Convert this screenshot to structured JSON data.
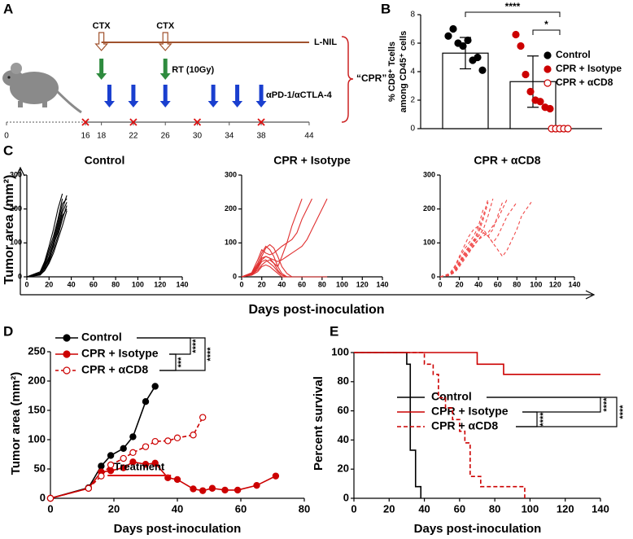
{
  "panel_labels": [
    "A",
    "B",
    "C",
    "D",
    "E"
  ],
  "panel_c": {
    "ylabel": "Tumor area (mm²)",
    "xlabel": "Days post-inoculation"
  },
  "chart_data": [
    {
      "type": "timeline",
      "xticks": [
        0,
        16,
        18,
        22,
        26,
        30,
        34,
        38,
        44
      ],
      "ctx": {
        "label": "CTX",
        "color": "#a0522d",
        "days": [
          18,
          26
        ]
      },
      "lnil": {
        "label": "L-NIL",
        "color": "#a0522d",
        "days": [
          18,
          44
        ]
      },
      "rt": {
        "label": "RT (10Gy)",
        "color": "#2e8b3e",
        "days": [
          18,
          26
        ]
      },
      "checkpoint": {
        "label": "αPD-1/αCTLA-4",
        "color": "#1a3fcf",
        "days": [
          19,
          22,
          26,
          32,
          35,
          38
        ]
      },
      "crosses": {
        "color": "#dd1111",
        "days": [
          16,
          22,
          30,
          38
        ]
      },
      "group_label": "“CPR”",
      "group_color": "#cc2222"
    },
    {
      "type": "bar",
      "categories": [
        "Control",
        "CPR + Isotype",
        "CPR + αCD8"
      ],
      "values": [
        5.3,
        3.3,
        0
      ],
      "errors": [
        1.1,
        1.8,
        0
      ],
      "points": [
        [
          6.5,
          7.0,
          6.0,
          5.8,
          6.2,
          4.8,
          5.0,
          4.1
        ],
        [
          6.6,
          5.8,
          3.8,
          2.6,
          2.0,
          1.9,
          1.5,
          1.4
        ],
        [
          0,
          0,
          0,
          0,
          0
        ]
      ],
      "colors": [
        "#000000",
        "#cc0000",
        "#cc0000"
      ],
      "hollow": [
        false,
        false,
        true
      ],
      "ylabel": [
        "% CD8⁺ Tcells",
        "among CD45⁺ cells"
      ],
      "ylim": [
        0,
        8
      ],
      "yticks": [
        0,
        2,
        4,
        6,
        8
      ],
      "significance": [
        "****",
        "*"
      ]
    },
    {
      "type": "spaghetti",
      "title": "Control",
      "dashed": false,
      "xlim": [
        0,
        140
      ],
      "xticks": [
        0,
        20,
        40,
        60,
        80,
        100,
        120,
        140
      ],
      "ylim": [
        0,
        300
      ],
      "yticks": [
        0,
        100,
        200,
        300
      ],
      "x": [
        0,
        12,
        16,
        20,
        24,
        28,
        32,
        36
      ],
      "series": [
        {
          "color": "#000000",
          "values": [
            0,
            10,
            30,
            60,
            100,
            150,
            200,
            240
          ]
        },
        {
          "color": "#000000",
          "values": [
            0,
            8,
            25,
            55,
            90,
            140,
            190,
            220
          ]
        },
        {
          "color": "#000000",
          "values": [
            0,
            12,
            40,
            80,
            120,
            170,
            230,
            null
          ]
        },
        {
          "color": "#000000",
          "values": [
            0,
            5,
            20,
            45,
            80,
            120,
            170,
            210
          ]
        },
        {
          "color": "#000000",
          "values": [
            0,
            15,
            45,
            90,
            140,
            200,
            245,
            null
          ]
        },
        {
          "color": "#000000",
          "values": [
            0,
            7,
            28,
            50,
            95,
            130,
            180,
            200
          ]
        },
        {
          "color": "#000000",
          "values": [
            0,
            10,
            35,
            70,
            110,
            160,
            215,
            230
          ]
        },
        {
          "color": "#000000",
          "values": [
            0,
            6,
            18,
            40,
            70,
            110,
            150,
            195
          ]
        }
      ]
    },
    {
      "type": "spaghetti",
      "title": "CPR + Isotype",
      "dashed": false,
      "xlim": [
        0,
        140
      ],
      "xticks": [
        0,
        20,
        40,
        60,
        80,
        100,
        120,
        140
      ],
      "ylim": [
        0,
        300
      ],
      "yticks": [
        0,
        100,
        200,
        300
      ],
      "x": [
        0,
        10,
        16,
        20,
        24,
        28,
        32,
        36,
        40,
        45,
        50,
        55,
        60,
        65,
        70,
        75,
        80,
        85
      ],
      "series": [
        {
          "color": "#e03030",
          "values": [
            0,
            10,
            40,
            70,
            90,
            80,
            60,
            30,
            10,
            0,
            0,
            0,
            0,
            0,
            0,
            0,
            0,
            0
          ]
        },
        {
          "color": "#e03030",
          "values": [
            0,
            8,
            30,
            60,
            85,
            95,
            85,
            60,
            30,
            10,
            0,
            0,
            0,
            0,
            0,
            0,
            0,
            0
          ]
        },
        {
          "color": "#e03030",
          "values": [
            0,
            12,
            50,
            80,
            70,
            65,
            70,
            80,
            90,
            100,
            110,
            130,
            170,
            200,
            230,
            null,
            null,
            null
          ]
        },
        {
          "color": "#e03030",
          "values": [
            0,
            6,
            25,
            45,
            50,
            40,
            30,
            15,
            5,
            0,
            0,
            0,
            0,
            0,
            0,
            0,
            0,
            0
          ]
        },
        {
          "color": "#e03030",
          "values": [
            0,
            9,
            35,
            55,
            60,
            55,
            40,
            30,
            60,
            100,
            150,
            190,
            230,
            null,
            null,
            null,
            null,
            null
          ]
        },
        {
          "color": "#e03030",
          "values": [
            0,
            7,
            20,
            35,
            45,
            50,
            40,
            20,
            5,
            0,
            0,
            0,
            0,
            0,
            0,
            0,
            0,
            0
          ]
        },
        {
          "color": "#e03030",
          "values": [
            0,
            8,
            28,
            50,
            60,
            55,
            50,
            45,
            50,
            60,
            70,
            80,
            90,
            110,
            140,
            170,
            200,
            230
          ]
        },
        {
          "color": "#e03030",
          "values": [
            0,
            5,
            15,
            30,
            35,
            30,
            20,
            10,
            0,
            0,
            0,
            0,
            0,
            0,
            0,
            0,
            0,
            0
          ]
        }
      ]
    },
    {
      "type": "spaghetti",
      "title": "CPR + αCD8",
      "dashed": true,
      "xlim": [
        0,
        140
      ],
      "xticks": [
        0,
        20,
        40,
        60,
        80,
        100,
        120,
        140
      ],
      "ylim": [
        0,
        300
      ],
      "yticks": [
        0,
        100,
        200,
        300
      ],
      "x": [
        0,
        10,
        16,
        20,
        25,
        30,
        35,
        40,
        45,
        50,
        55,
        60,
        65,
        70,
        75,
        80,
        85,
        90,
        95
      ],
      "series": [
        {
          "color": "#f04848",
          "values": [
            0,
            5,
            20,
            40,
            60,
            80,
            100,
            130,
            170,
            220,
            null,
            null,
            null,
            null,
            null,
            null,
            null,
            null,
            null
          ]
        },
        {
          "color": "#f04848",
          "values": [
            0,
            8,
            30,
            55,
            80,
            100,
            120,
            150,
            200,
            null,
            null,
            null,
            null,
            null,
            null,
            null,
            null,
            null,
            null
          ]
        },
        {
          "color": "#f04848",
          "values": [
            0,
            6,
            25,
            45,
            70,
            90,
            110,
            120,
            140,
            180,
            230,
            null,
            null,
            null,
            null,
            null,
            null,
            null,
            null
          ]
        },
        {
          "color": "#f04848",
          "values": [
            0,
            10,
            35,
            60,
            90,
            120,
            140,
            150,
            130,
            120,
            140,
            180,
            220,
            null,
            null,
            null,
            null,
            null,
            null
          ]
        },
        {
          "color": "#f04848",
          "values": [
            0,
            4,
            15,
            30,
            50,
            70,
            95,
            110,
            120,
            130,
            150,
            170,
            200,
            230,
            null,
            null,
            null,
            null,
            null
          ]
        },
        {
          "color": "#f04848",
          "values": [
            0,
            7,
            20,
            40,
            60,
            80,
            100,
            120,
            140,
            120,
            100,
            120,
            150,
            180,
            200,
            220,
            null,
            null,
            null
          ]
        },
        {
          "color": "#f04848",
          "values": [
            0,
            5,
            18,
            35,
            55,
            75,
            90,
            110,
            130,
            120,
            100,
            80,
            60,
            80,
            110,
            140,
            180,
            200,
            220
          ]
        },
        {
          "color": "#f04848",
          "values": [
            0,
            6,
            22,
            42,
            65,
            85,
            105,
            140,
            180,
            230,
            null,
            null,
            null,
            null,
            null,
            null,
            null,
            null,
            null
          ]
        }
      ]
    },
    {
      "type": "line",
      "ylabel": "Tumor area (mm²)",
      "xlabel": "Days post-inoculation",
      "xlim": [
        0,
        80
      ],
      "xticks": [
        0,
        20,
        40,
        60,
        80
      ],
      "ylim": [
        0,
        250
      ],
      "yticks": [
        0,
        50,
        100,
        150,
        200,
        250
      ],
      "series": [
        {
          "name": "Control",
          "color": "#000000",
          "hollow": false,
          "dashed": false,
          "x": [
            0,
            12,
            16,
            19,
            23,
            26,
            30,
            33
          ],
          "values": [
            0,
            18,
            55,
            73,
            85,
            105,
            165,
            191
          ]
        },
        {
          "name": "CPR + Isotype",
          "color": "#cc0000",
          "hollow": false,
          "dashed": false,
          "x": [
            0,
            12,
            16,
            19,
            23,
            26,
            30,
            33,
            37,
            40,
            45,
            48,
            51,
            55,
            59,
            65,
            71
          ],
          "values": [
            0,
            17,
            45,
            47,
            52,
            62,
            58,
            60,
            35,
            32,
            16,
            13,
            17,
            14,
            14,
            22,
            38
          ]
        },
        {
          "name": "CPR + αCD8",
          "color": "#cc0000",
          "hollow": true,
          "dashed": true,
          "x": [
            0,
            12,
            16,
            19,
            23,
            26,
            30,
            33,
            37,
            40,
            45,
            48
          ],
          "values": [
            0,
            17,
            38,
            57,
            68,
            78,
            88,
            97,
            98,
            103,
            108,
            138
          ]
        }
      ],
      "treatment": {
        "label": "Treatment",
        "color": "#dd1111",
        "x": [
          18,
          38
        ]
      },
      "significance": [
        "****",
        "****",
        "***"
      ]
    },
    {
      "type": "survival",
      "ylabel": "Percent survival",
      "xlabel": "Days post-inoculation",
      "xlim": [
        0,
        140
      ],
      "xticks": [
        0,
        20,
        40,
        60,
        80,
        100,
        120,
        140
      ],
      "ylim": [
        0,
        100
      ],
      "yticks": [
        0,
        20,
        40,
        60,
        80,
        100
      ],
      "series": [
        {
          "name": "Control",
          "color": "#000000",
          "dashed": false,
          "x": [
            0,
            30,
            32,
            35,
            38
          ],
          "values": [
            100,
            92,
            33,
            8,
            0
          ]
        },
        {
          "name": "CPR + Isotype",
          "color": "#cc0000",
          "dashed": false,
          "x": [
            0,
            70,
            85,
            140
          ],
          "values": [
            100,
            92,
            85,
            85
          ]
        },
        {
          "name": "CPR + αCD8",
          "color": "#cc0000",
          "dashed": true,
          "x": [
            0,
            40,
            45,
            48,
            52,
            56,
            60,
            63,
            66,
            72,
            97
          ],
          "values": [
            100,
            92,
            85,
            69,
            62,
            54,
            46,
            38,
            15,
            8,
            0
          ]
        }
      ],
      "significance": [
        "****",
        "****",
        "****"
      ]
    }
  ]
}
